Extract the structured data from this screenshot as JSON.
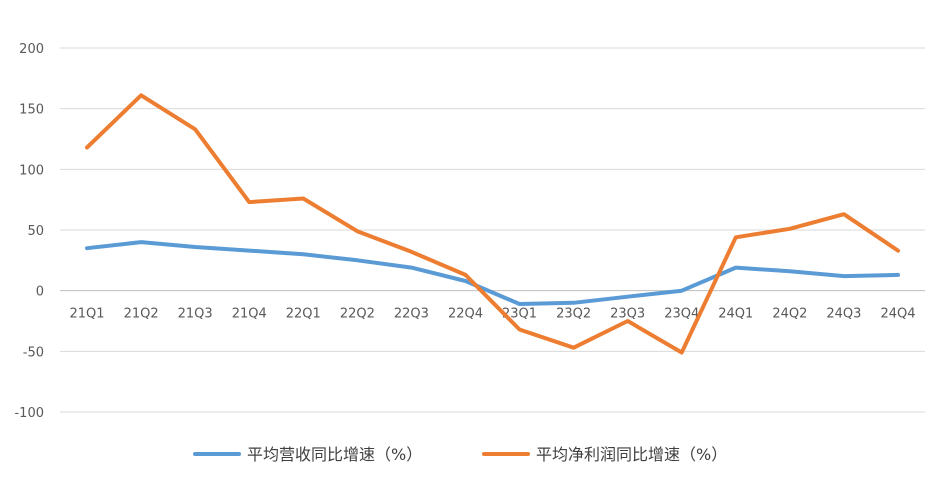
{
  "chart_data": {
    "type": "line",
    "title": "",
    "xlabel": "",
    "ylabel": "",
    "categories": [
      "21Q1",
      "21Q2",
      "21Q3",
      "21Q4",
      "22Q1",
      "22Q2",
      "22Q3",
      "22Q4",
      "23Q1",
      "23Q2",
      "23Q3",
      "23Q4",
      "24Q1",
      "24Q2",
      "24Q3",
      "24Q4"
    ],
    "ylim": [
      -100,
      200
    ],
    "yticks": [
      200,
      150,
      100,
      50,
      0,
      -50,
      -100
    ],
    "grid": true,
    "legend_position": "bottom",
    "series": [
      {
        "name": "平均营收同比增速（%）",
        "color": "#5B9BD5",
        "values": [
          35,
          40,
          36,
          33,
          30,
          25,
          19,
          8,
          -11,
          -10,
          -5,
          0,
          19,
          16,
          12,
          13
        ]
      },
      {
        "name": "平均净利润同比增速（%）",
        "color": "#ED7D31",
        "values": [
          118,
          161,
          133,
          73,
          76,
          49,
          32,
          13,
          -32,
          -47,
          -25,
          -51,
          44,
          51,
          63,
          33
        ]
      }
    ]
  }
}
